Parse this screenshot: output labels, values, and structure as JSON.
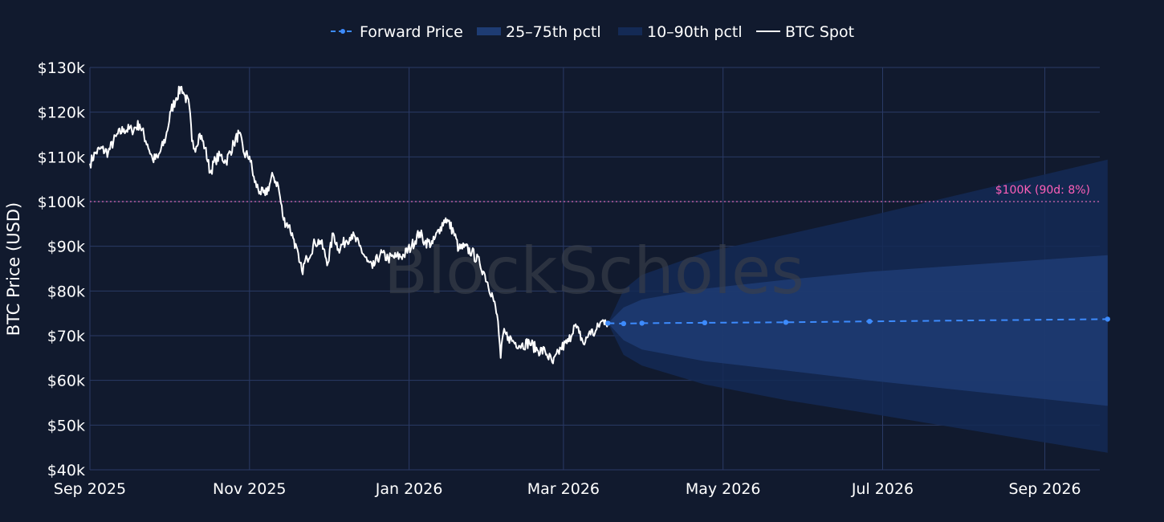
{
  "chart_data": {
    "type": "line",
    "title": "",
    "xlabel": "",
    "ylabel": "BTC Price (USD)",
    "ylim": [
      40000,
      130000
    ],
    "xlim": [
      "2025-09-01",
      "2026-09-22"
    ],
    "y_ticks": [
      {
        "value": 40000,
        "label": "$40k"
      },
      {
        "value": 50000,
        "label": "$50k"
      },
      {
        "value": 60000,
        "label": "$60k"
      },
      {
        "value": 70000,
        "label": "$70k"
      },
      {
        "value": 80000,
        "label": "$80k"
      },
      {
        "value": 90000,
        "label": "$90k"
      },
      {
        "value": 100000,
        "label": "$100k"
      },
      {
        "value": 110000,
        "label": "$110k"
      },
      {
        "value": 120000,
        "label": "$120k"
      },
      {
        "value": 130000,
        "label": "$130k"
      }
    ],
    "x_ticks": [
      {
        "value": "2025-09-01",
        "label": "Sep 2025"
      },
      {
        "value": "2025-11-01",
        "label": "Nov 2025"
      },
      {
        "value": "2026-01-01",
        "label": "Jan 2026"
      },
      {
        "value": "2026-03-01",
        "label": "Mar 2026"
      },
      {
        "value": "2026-05-01",
        "label": "May 2026"
      },
      {
        "value": "2026-07-01",
        "label": "Jul 2026"
      },
      {
        "value": "2026-09-01",
        "label": "Sep 2026"
      }
    ],
    "grid": true,
    "legend_position": "top-center",
    "legend": [
      "Forward Price",
      "25–75th pctl",
      "10–90th pctl",
      "BTC Spot"
    ],
    "series": [
      {
        "name": "BTC Spot",
        "type": "line",
        "color": "#ffffff",
        "x": [
          "2025-09-01",
          "2025-09-03",
          "2025-09-05",
          "2025-09-08",
          "2025-09-11",
          "2025-09-14",
          "2025-09-17",
          "2025-09-20",
          "2025-09-23",
          "2025-09-25",
          "2025-09-27",
          "2025-09-30",
          "2025-10-02",
          "2025-10-04",
          "2025-10-06",
          "2025-10-07",
          "2025-10-09",
          "2025-10-10",
          "2025-10-11",
          "2025-10-13",
          "2025-10-15",
          "2025-10-17",
          "2025-10-19",
          "2025-10-21",
          "2025-10-23",
          "2025-10-26",
          "2025-10-28",
          "2025-10-30",
          "2025-11-01",
          "2025-11-03",
          "2025-11-05",
          "2025-11-07",
          "2025-11-10",
          "2025-11-12",
          "2025-11-14",
          "2025-11-16",
          "2025-11-18",
          "2025-11-20",
          "2025-11-21",
          "2025-11-23",
          "2025-11-26",
          "2025-11-28",
          "2025-12-01",
          "2025-12-03",
          "2025-12-05",
          "2025-12-08",
          "2025-12-10",
          "2025-12-13",
          "2025-12-16",
          "2025-12-18",
          "2025-12-21",
          "2025-12-24",
          "2025-12-27",
          "2025-12-30",
          "2026-01-02",
          "2026-01-05",
          "2026-01-07",
          "2026-01-10",
          "2026-01-13",
          "2026-01-15",
          "2026-01-18",
          "2026-01-20",
          "2026-01-22",
          "2026-01-25",
          "2026-01-28",
          "2026-01-30",
          "2026-02-02",
          "2026-02-04",
          "2026-02-05",
          "2026-02-06",
          "2026-02-08",
          "2026-02-10",
          "2026-02-13",
          "2026-02-16",
          "2026-02-19",
          "2026-02-22",
          "2026-02-25",
          "2026-02-28",
          "2026-03-03",
          "2026-03-05",
          "2026-03-07",
          "2026-03-09",
          "2026-03-11",
          "2026-03-13",
          "2026-03-15",
          "2026-03-17",
          "2026-03-18"
        ],
        "y": [
          108500,
          110800,
          111800,
          111000,
          114600,
          116200,
          116000,
          117300,
          112800,
          109400,
          109800,
          114300,
          120300,
          123200,
          125700,
          124000,
          121400,
          113500,
          111800,
          115200,
          112000,
          106500,
          109400,
          110300,
          108900,
          113000,
          115300,
          110600,
          110100,
          104300,
          102200,
          101400,
          105800,
          103500,
          95900,
          94700,
          91500,
          86500,
          84500,
          87300,
          90800,
          91200,
          86300,
          92900,
          89400,
          91300,
          92600,
          90100,
          86600,
          85100,
          88300,
          87300,
          87600,
          88000,
          90100,
          93100,
          91000,
          90600,
          94300,
          96300,
          93300,
          89300,
          89800,
          88700,
          86200,
          83600,
          78700,
          73200,
          65000,
          70500,
          69700,
          68600,
          67900,
          68500,
          66800,
          66500,
          63800,
          67200,
          68700,
          72300,
          70600,
          68000,
          71000,
          70500,
          72800,
          73500,
          72800
        ]
      },
      {
        "name": "Forward Price",
        "type": "line",
        "color": "#3d8bfd",
        "x": [
          "2026-03-18",
          "2026-03-24",
          "2026-03-31",
          "2026-04-24",
          "2026-05-25",
          "2026-06-26",
          "2026-09-25"
        ],
        "y": [
          72800,
          72700,
          72800,
          72900,
          73000,
          73200,
          73700
        ]
      },
      {
        "name": "25–75th pctl",
        "type": "band",
        "color": "#1e3c73",
        "x": [
          "2026-03-18",
          "2026-03-24",
          "2026-03-31",
          "2026-04-24",
          "2026-05-25",
          "2026-06-26",
          "2026-09-25"
        ],
        "upper": [
          72800,
          76300,
          78100,
          80500,
          82500,
          84300,
          88000
        ],
        "lower": [
          72800,
          69000,
          66900,
          64300,
          62200,
          60000,
          54300
        ]
      },
      {
        "name": "10–90th pctl",
        "type": "band",
        "color": "#142a55",
        "x": [
          "2026-03-18",
          "2026-03-24",
          "2026-03-31",
          "2026-04-24",
          "2026-05-25",
          "2026-06-26",
          "2026-09-25"
        ],
        "upper": [
          72800,
          80300,
          83600,
          88600,
          92600,
          96800,
          109400
        ],
        "lower": [
          72800,
          65700,
          63300,
          59100,
          55600,
          52600,
          43800
        ]
      }
    ],
    "reference_lines": [
      {
        "y": 100000,
        "label": "$100K  (90d: 8%)",
        "color": "#d869b4"
      }
    ]
  },
  "watermark": "BlockScholes"
}
